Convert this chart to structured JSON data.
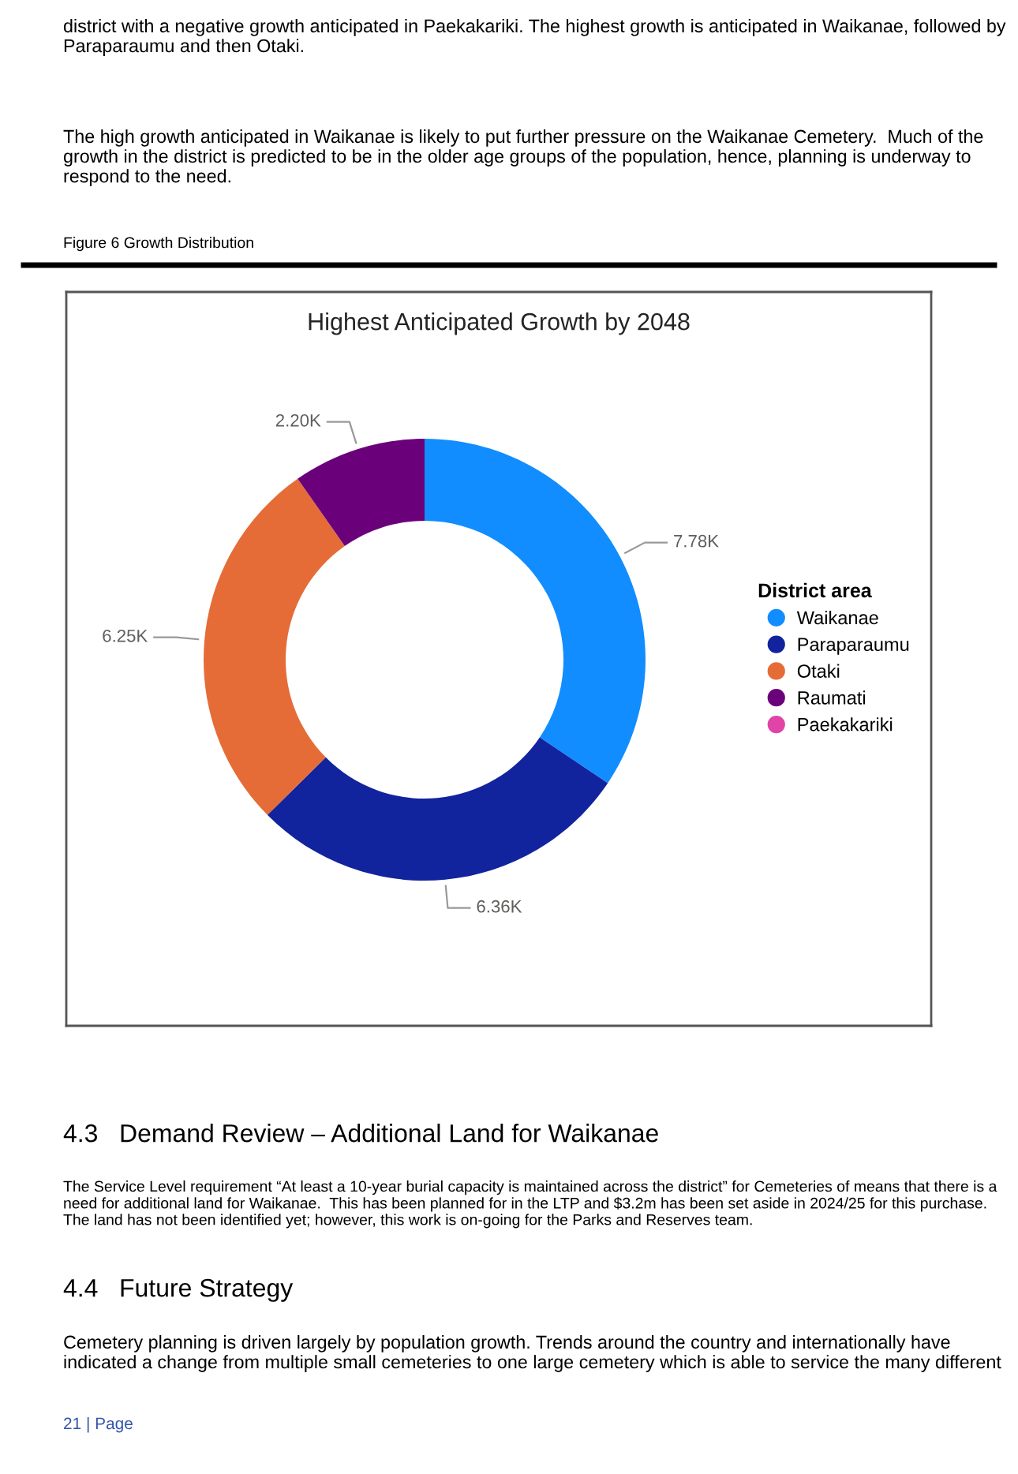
{
  "chart_data": {
    "type": "donut",
    "title": "Highest Anticipated Growth by 2048",
    "legend_title": "District area",
    "legend": "right",
    "categories": [
      "Waikanae",
      "Paraparaumu",
      "Otaki",
      "Raumati",
      "Paekakariki"
    ],
    "values": [
      7780,
      6360,
      6250,
      2200,
      null
    ],
    "value_labels": [
      "7.78K",
      "6.36K",
      "6.25K",
      "2.20K",
      null
    ],
    "colors": [
      "#118dff",
      "#12239e",
      "#e66c37",
      "#6b007b",
      "#e044a7"
    ],
    "annotations": [
      "district with a negative growth anticipated in Paekakariki. The highest growth is anticipated in Waikanae, followed by Paraparaumu and then Otaki.",
      "The high growth anticipated in Waikanae is likely to put further pressure on the Waikanae Cemetery.  Much of the growth in the district is predicted to be in the older age groups of the population, hence, planning is underway to respond to the need.",
      "Figure 6 Growth Distribution",
      "4.3   Demand Review – Additional Land for Waikanae",
      "The Service Level requirement “At least a 10-year burial capacity is maintained across the district” for Cemeteries of means that there is a need for additional land for Waikanae.  This has been planned for in the LTP and $3.2m has been set aside in 2024/25 for this purchase.  The land has not been identified yet; however, this work is on-going for the Parks and Reserves team.",
      "4.4   Future Strategy",
      "Cemetery planning is driven largely by population growth. Trends around the country and internationally have indicated a change from multiple small cemeteries to one large cemetery which is able to service the many different",
      "21 | Page"
    ]
  }
}
